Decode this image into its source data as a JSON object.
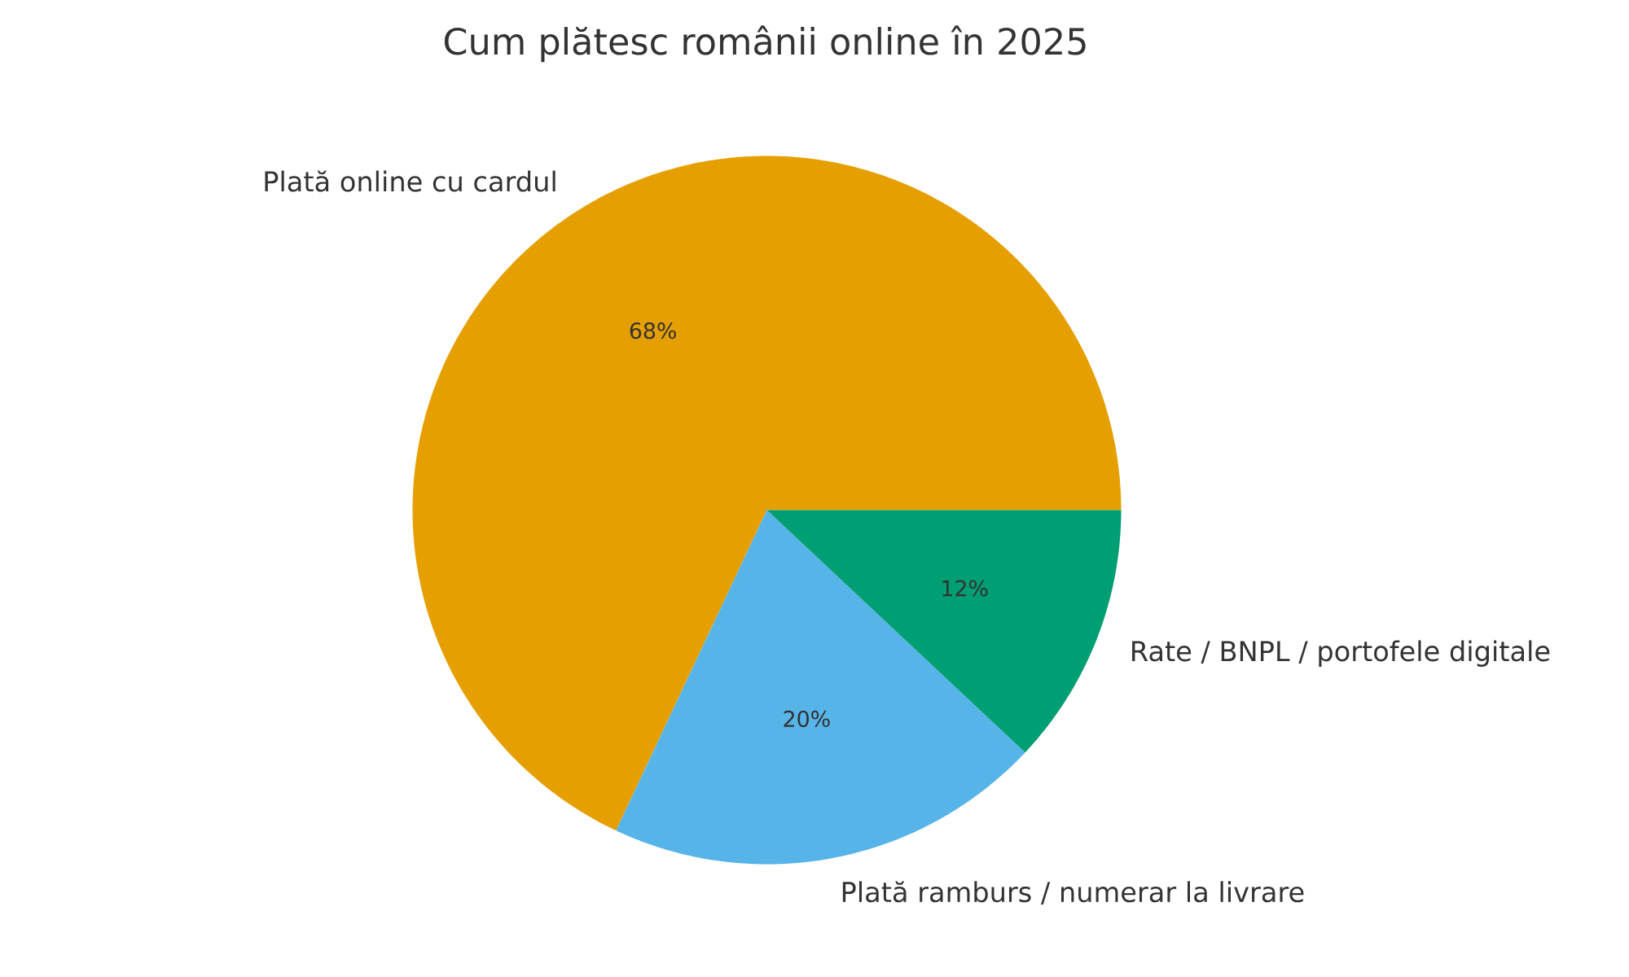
{
  "chart_data": {
    "type": "pie",
    "title": "Cum plătesc românii online în 2025",
    "categories": [
      "Plată online cu cardul",
      "Plată ramburs / numerar la livrare",
      "Rate / BNPL / portofele digitale"
    ],
    "values": [
      68,
      20,
      12
    ],
    "colors": [
      "#e69f00",
      "#56b4e9",
      "#009e73"
    ],
    "value_labels": [
      "68%",
      "20%",
      "12%"
    ]
  }
}
